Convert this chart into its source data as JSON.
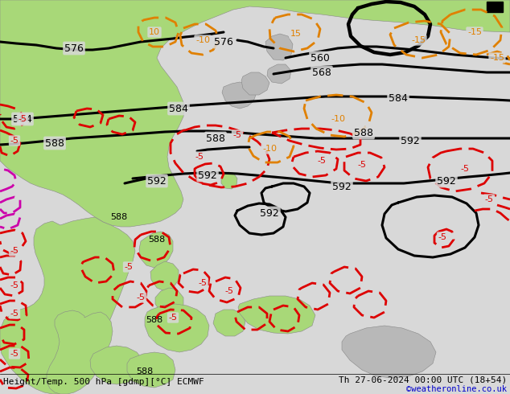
{
  "title_left": "Height/Temp. 500 hPa [gdmp][°C] ECMWF",
  "title_right": "Th 27-06-2024 00:00 UTC (18+54)",
  "copyright": "©weatheronline.co.uk",
  "bg_color": "#d8d8d8",
  "land_green_color": "#a8d878",
  "land_gray_color": "#b8b8b8",
  "sea_color": "#d0d0d8",
  "contour_black_color": "#000000",
  "contour_red_color": "#dd0000",
  "contour_orange_color": "#e08000",
  "contour_magenta_color": "#cc00aa",
  "text_color_black": "#000000",
  "text_color_blue": "#0000cc",
  "fig_width": 6.34,
  "fig_height": 4.9,
  "dpi": 100
}
